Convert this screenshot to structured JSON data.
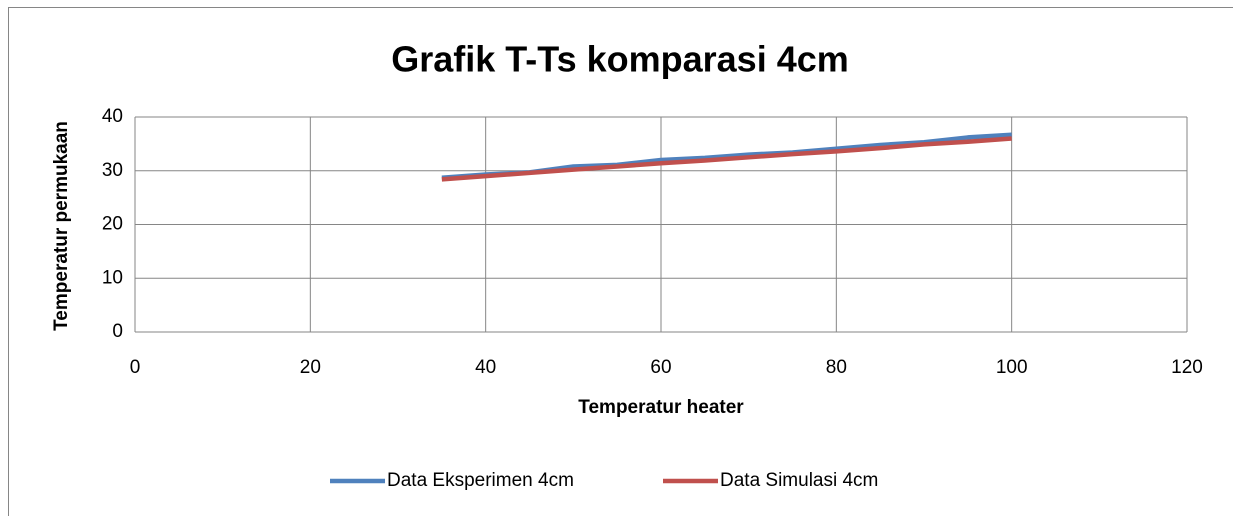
{
  "chart_data": {
    "type": "line",
    "title": "Grafik T-Ts komparasi 4cm",
    "x_label": "Temperatur heater",
    "y_label": "Temperatur permukaan",
    "x": [
      35,
      40,
      45,
      50,
      55,
      60,
      65,
      70,
      75,
      80,
      85,
      90,
      95,
      100
    ],
    "series": [
      {
        "name": "Data Eksperimen 4cm",
        "color": "#4f81bd",
        "values": [
          28.7,
          29.3,
          29.7,
          30.8,
          31.1,
          32.0,
          32.4,
          33.0,
          33.4,
          34.1,
          34.8,
          35.3,
          36.2,
          36.7
        ]
      },
      {
        "name": "Data Simulasi 4cm",
        "color": "#c0504d",
        "values": [
          28.4,
          29.0,
          29.6,
          30.2,
          30.8,
          31.4,
          31.9,
          32.5,
          33.1,
          33.6,
          34.2,
          34.9,
          35.4,
          36.0
        ]
      }
    ],
    "xlim": [
      0,
      120
    ],
    "xticks": [
      0,
      20,
      40,
      60,
      80,
      100,
      120
    ],
    "ylim": [
      0,
      40
    ],
    "yticks": [
      0,
      10,
      20,
      30,
      40
    ],
    "grid": true,
    "legend": "bottom"
  }
}
